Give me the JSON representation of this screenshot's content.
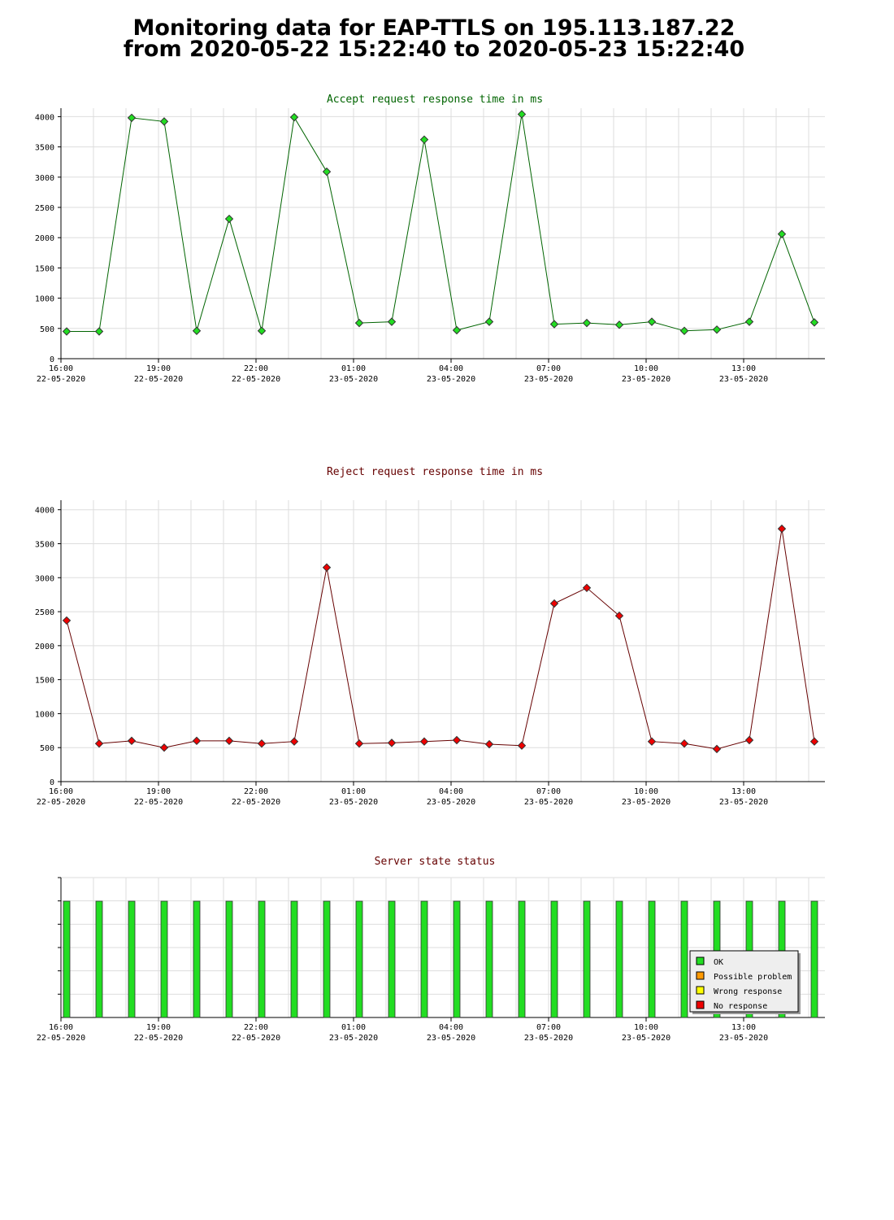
{
  "page": {
    "title_line1": "Monitoring data for EAP-TTLS on 195.113.187.22",
    "title_line2": "from 2020-05-22 15:22:40 to 2020-05-23 15:22:40"
  },
  "x_axis_ticks": [
    {
      "time": "16:00",
      "date": "22-05-2020"
    },
    {
      "time": "19:00",
      "date": "22-05-2020"
    },
    {
      "time": "22:00",
      "date": "22-05-2020"
    },
    {
      "time": "01:00",
      "date": "23-05-2020"
    },
    {
      "time": "04:00",
      "date": "23-05-2020"
    },
    {
      "time": "07:00",
      "date": "23-05-2020"
    },
    {
      "time": "10:00",
      "date": "23-05-2020"
    },
    {
      "time": "13:00",
      "date": "23-05-2020"
    }
  ],
  "chart_data": [
    {
      "type": "line",
      "title": "Accept request response time in ms",
      "title_color": "#006400",
      "line_color": "#006400",
      "marker_color": "#22dd22",
      "grid": true,
      "ylim": [
        0,
        4100
      ],
      "yticks": [
        0,
        500,
        1000,
        1500,
        2000,
        2500,
        3000,
        3500,
        4000
      ],
      "x": [
        "15:49",
        "16:49",
        "17:49",
        "18:49",
        "19:49",
        "20:49",
        "21:49",
        "22:49",
        "23:49",
        "00:49",
        "01:49",
        "02:49",
        "03:49",
        "04:49",
        "05:49",
        "06:49",
        "07:49",
        "08:49",
        "09:49",
        "10:49",
        "11:49",
        "12:49",
        "13:49",
        "14:49"
      ],
      "values": [
        450,
        450,
        3980,
        3920,
        460,
        2310,
        460,
        3990,
        3090,
        590,
        610,
        3620,
        470,
        610,
        4040,
        570,
        590,
        560,
        610,
        460,
        480,
        610,
        2060,
        600
      ]
    },
    {
      "type": "line",
      "title": "Reject request response time in ms",
      "title_color": "#660000",
      "line_color": "#660000",
      "marker_color": "#ee0000",
      "grid": true,
      "ylim": [
        0,
        4100
      ],
      "yticks": [
        0,
        500,
        1000,
        1500,
        2000,
        2500,
        3000,
        3500,
        4000
      ],
      "x": [
        "15:49",
        "16:49",
        "17:49",
        "18:49",
        "19:49",
        "20:49",
        "21:49",
        "22:49",
        "23:49",
        "00:49",
        "01:49",
        "02:49",
        "03:49",
        "04:49",
        "05:49",
        "06:49",
        "07:49",
        "08:49",
        "09:49",
        "10:49",
        "11:49",
        "12:49",
        "13:49",
        "14:49"
      ],
      "values": [
        2370,
        560,
        600,
        500,
        600,
        600,
        560,
        590,
        3150,
        560,
        570,
        590,
        610,
        550,
        530,
        2620,
        2850,
        2440,
        590,
        560,
        480,
        610,
        3720,
        590
      ]
    },
    {
      "type": "bar",
      "title": "Server state status",
      "title_color": "#660000",
      "grid": true,
      "x": [
        "15:49",
        "16:49",
        "17:49",
        "18:49",
        "19:49",
        "20:49",
        "21:49",
        "22:49",
        "23:49",
        "00:49",
        "01:49",
        "02:49",
        "03:49",
        "04:49",
        "05:49",
        "06:49",
        "07:49",
        "08:49",
        "09:49",
        "10:49",
        "11:49",
        "12:49",
        "13:49",
        "14:49"
      ],
      "states": [
        "OK",
        "OK",
        "OK",
        "OK",
        "OK",
        "OK",
        "OK",
        "OK",
        "OK",
        "OK",
        "OK",
        "OK",
        "OK",
        "OK",
        "OK",
        "OK",
        "OK",
        "OK",
        "OK",
        "OK",
        "OK",
        "OK",
        "OK",
        "OK"
      ],
      "legend_position": "bottom-right",
      "legend": [
        {
          "label": "OK",
          "color": "#22dd22"
        },
        {
          "label": "Possible problem",
          "color": "#ff9900"
        },
        {
          "label": "Wrong response",
          "color": "#ffff00"
        },
        {
          "label": "No response",
          "color": "#ee0000"
        }
      ]
    }
  ]
}
